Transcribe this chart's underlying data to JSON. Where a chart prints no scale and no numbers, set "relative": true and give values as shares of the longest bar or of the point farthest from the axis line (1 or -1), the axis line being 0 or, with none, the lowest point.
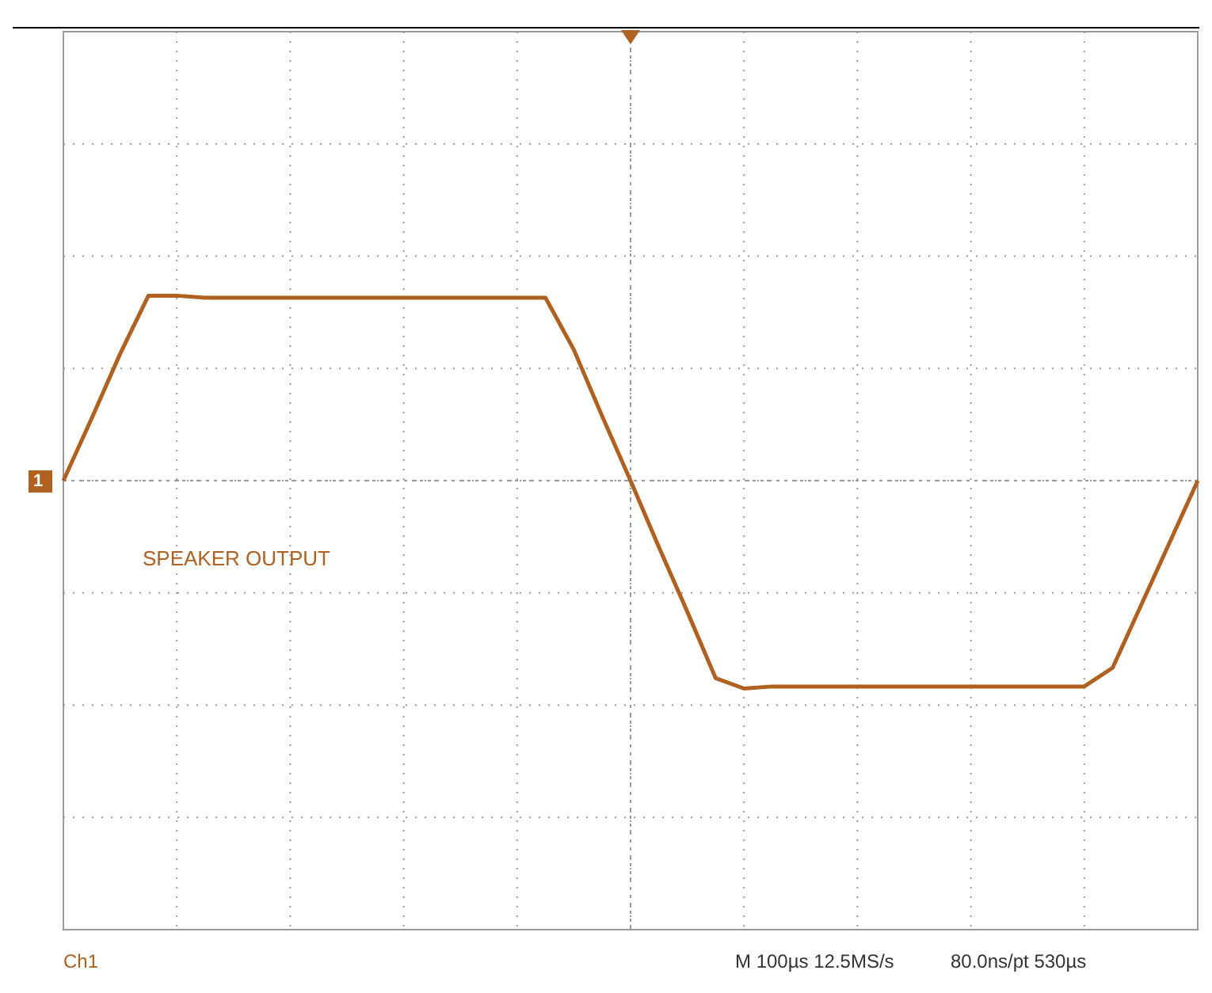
{
  "chart_data": {
    "type": "line",
    "relative": true,
    "grid": true,
    "marker": "none",
    "line_style": "solid",
    "tick_labels": false,
    "categories": [
      null,
      null,
      null,
      null,
      null,
      null,
      null,
      null,
      null,
      null,
      null,
      null,
      null,
      null,
      null,
      null,
      null,
      null,
      null,
      null,
      null,
      null,
      null,
      null,
      null,
      null,
      null,
      null,
      null,
      null,
      null,
      null,
      null,
      null,
      null,
      null,
      null,
      null,
      null,
      null,
      null
    ],
    "series": [
      {
        "color": "#b0601f",
        "values": [
          0,
          0.3,
          0.61,
          0.89,
          0.89,
          0.88,
          0.88,
          0.88,
          0.88,
          0.88,
          0.88,
          0.88,
          0.88,
          0.88,
          0.88,
          0.88,
          0.88,
          0.88,
          0.63,
          0.31,
          0,
          -0.32,
          -0.63,
          -0.95,
          -1,
          -0.99,
          -0.99,
          -0.99,
          -0.99,
          -0.99,
          -0.99,
          -0.99,
          -0.99,
          -0.99,
          -0.99,
          -0.99,
          -0.99,
          -0.9,
          -0.6,
          -0.3,
          0
        ]
      }
    ],
    "annotations": [
      "SPEAKER OUTPUT",
      "1",
      "Ch1",
      "M 100µs 12.5MS/s",
      "80.0ns/pt 530µs"
    ]
  }
}
